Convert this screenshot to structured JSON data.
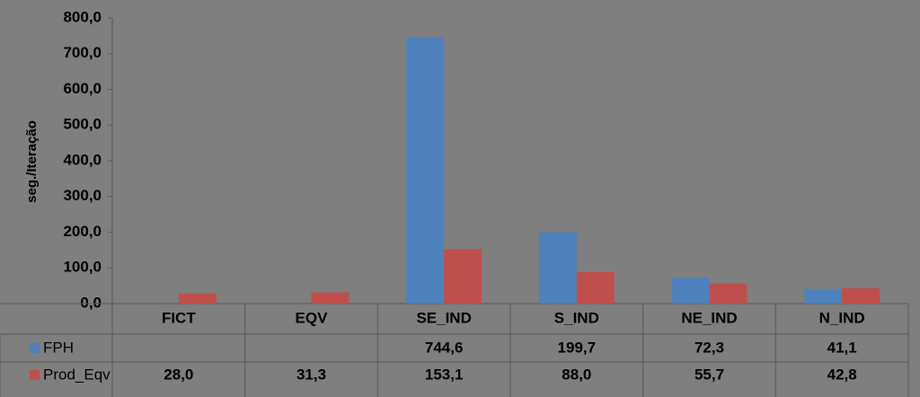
{
  "chart_data": {
    "type": "bar",
    "y_label": "seg./Iteração",
    "categories": [
      "FICT",
      "EQV",
      "SE_IND",
      "S_IND",
      "NE_IND",
      "N_IND"
    ],
    "series": [
      {
        "name": "FPH",
        "color": "#4f81bd",
        "values": [
          null,
          null,
          744.6,
          199.7,
          72.3,
          41.1
        ],
        "value_labels": [
          null,
          null,
          "744,6",
          "199,7",
          "72,3",
          "41,1"
        ]
      },
      {
        "name": "Prod_Eqv",
        "color": "#c0504d",
        "values": [
          28.0,
          31.3,
          153.1,
          88.0,
          55.7,
          42.8
        ],
        "value_labels": [
          "28,0",
          "31,3",
          "153,1",
          "88,0",
          "55,7",
          "42,8"
        ]
      }
    ],
    "ylim": [
      0,
      800
    ],
    "yticks": [
      {
        "value": 0,
        "label": "0,0"
      },
      {
        "value": 100,
        "label": "100,0"
      },
      {
        "value": 200,
        "label": "200,0"
      },
      {
        "value": 300,
        "label": "300,0"
      },
      {
        "value": 400,
        "label": "400,0"
      },
      {
        "value": 500,
        "label": "500,0"
      },
      {
        "value": 600,
        "label": "600,0"
      },
      {
        "value": 700,
        "label": "700,0"
      },
      {
        "value": 800,
        "label": "800,0"
      }
    ],
    "grid": false
  }
}
